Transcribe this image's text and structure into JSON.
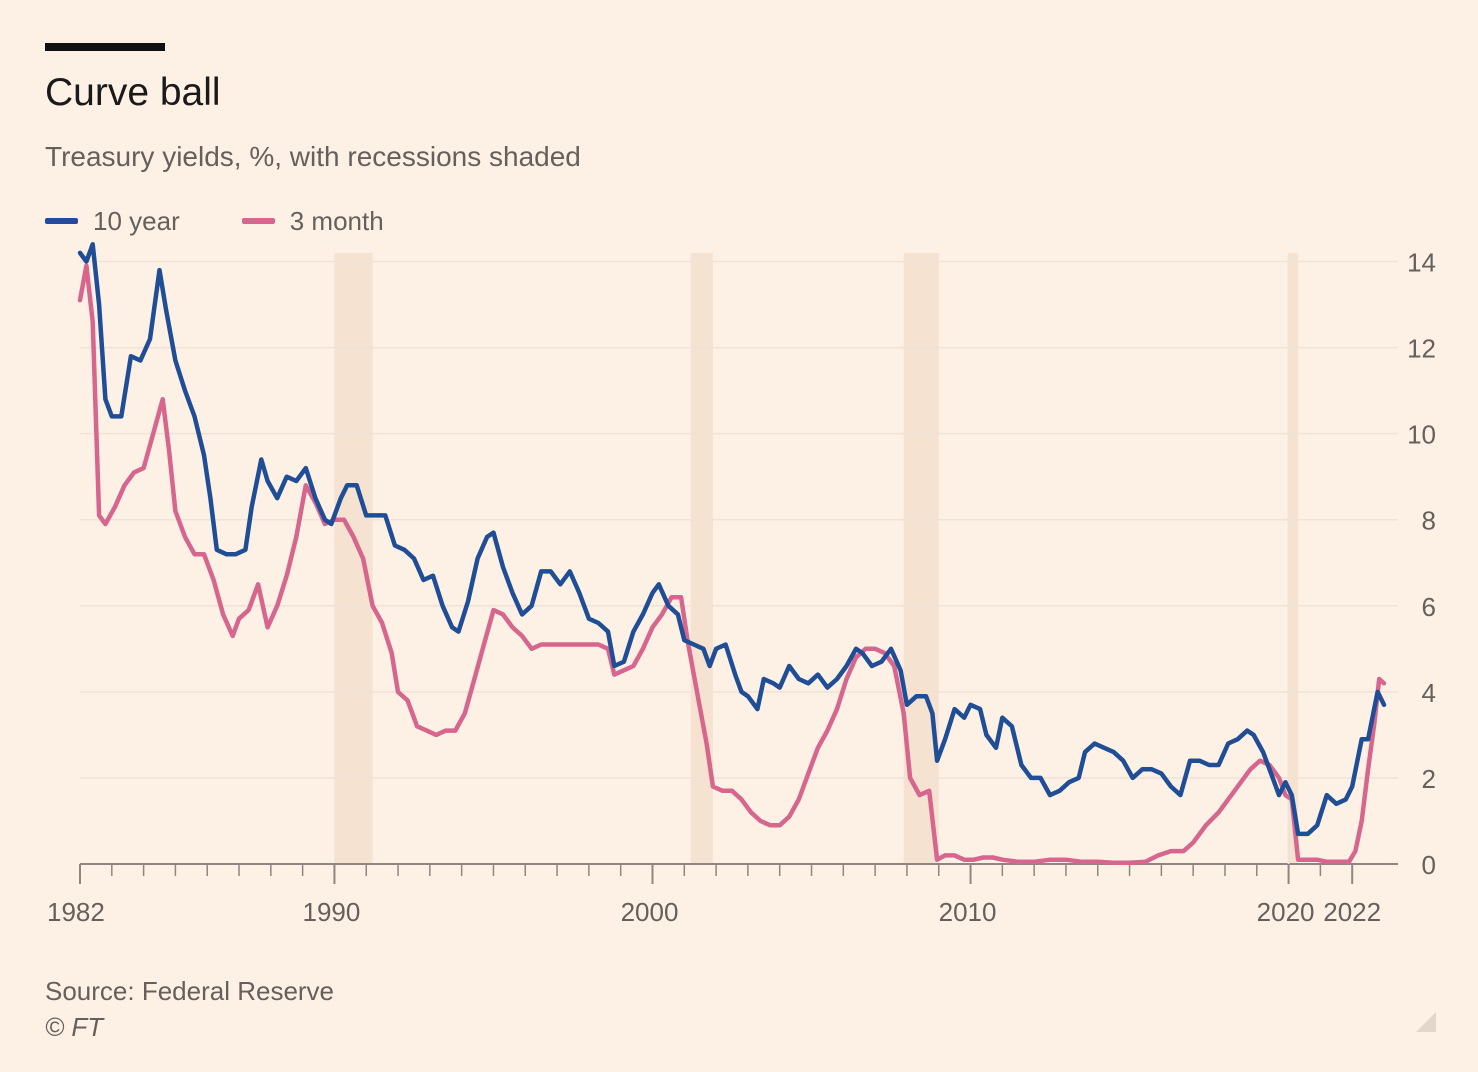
{
  "title": "Curve ball",
  "subtitle": "Treasury yields, %, with recessions shaded",
  "source": "Source: Federal Reserve",
  "credit": "© FT",
  "icons": {
    "resize_handle": "resize-corner-icon"
  },
  "colors": {
    "background": "#fdf1e6",
    "recession_shade": "#f5e2d0",
    "ten_year": "#1f4e96",
    "three_month": "#d6668d",
    "axis": "#8d8682",
    "grid": "#efe2d6",
    "tick_text": "#66605c"
  },
  "chart_data": {
    "type": "line",
    "title": "Curve ball",
    "subtitle": "Treasury yields, %, with recessions shaded",
    "xlabel": "",
    "ylabel": "",
    "xlim": [
      1982,
      2022.1
    ],
    "ylim": [
      0,
      14.5
    ],
    "x_ticks": [
      1982,
      1990,
      2000,
      2010,
      2020,
      2022
    ],
    "y_ticks": [
      0,
      2,
      4,
      6,
      8,
      10,
      12,
      14
    ],
    "y_axis_side": "right",
    "grid": "horizontal",
    "legend_position": "top-left",
    "recessions": [
      [
        1990.0,
        1991.2
      ],
      [
        2001.2,
        2001.9
      ],
      [
        2007.9,
        2009.0
      ],
      [
        2020.0,
        2020.3
      ]
    ],
    "series": [
      {
        "name": "10 year",
        "color": "#1f4e96",
        "points": [
          [
            1982.0,
            14.2
          ],
          [
            1982.2,
            14.0
          ],
          [
            1982.4,
            14.4
          ],
          [
            1982.6,
            13.0
          ],
          [
            1982.8,
            10.8
          ],
          [
            1983.0,
            10.4
          ],
          [
            1983.3,
            10.4
          ],
          [
            1983.6,
            11.8
          ],
          [
            1983.9,
            11.7
          ],
          [
            1984.2,
            12.2
          ],
          [
            1984.5,
            13.8
          ],
          [
            1984.7,
            12.9
          ],
          [
            1985.0,
            11.7
          ],
          [
            1985.3,
            11.0
          ],
          [
            1985.6,
            10.4
          ],
          [
            1985.9,
            9.5
          ],
          [
            1986.1,
            8.5
          ],
          [
            1986.3,
            7.3
          ],
          [
            1986.6,
            7.2
          ],
          [
            1986.9,
            7.2
          ],
          [
            1987.2,
            7.3
          ],
          [
            1987.4,
            8.3
          ],
          [
            1987.7,
            9.4
          ],
          [
            1987.9,
            8.9
          ],
          [
            1988.2,
            8.5
          ],
          [
            1988.5,
            9.0
          ],
          [
            1988.8,
            8.9
          ],
          [
            1989.1,
            9.2
          ],
          [
            1989.4,
            8.5
          ],
          [
            1989.7,
            8.0
          ],
          [
            1989.9,
            7.9
          ],
          [
            1990.2,
            8.5
          ],
          [
            1990.4,
            8.8
          ],
          [
            1990.7,
            8.8
          ],
          [
            1991.0,
            8.1
          ],
          [
            1991.3,
            8.1
          ],
          [
            1991.6,
            8.1
          ],
          [
            1991.9,
            7.4
          ],
          [
            1992.2,
            7.3
          ],
          [
            1992.5,
            7.1
          ],
          [
            1992.8,
            6.6
          ],
          [
            1993.1,
            6.7
          ],
          [
            1993.4,
            6.0
          ],
          [
            1993.7,
            5.5
          ],
          [
            1993.9,
            5.4
          ],
          [
            1994.2,
            6.1
          ],
          [
            1994.5,
            7.1
          ],
          [
            1994.8,
            7.6
          ],
          [
            1995.0,
            7.7
          ],
          [
            1995.3,
            6.9
          ],
          [
            1995.6,
            6.3
          ],
          [
            1995.9,
            5.8
          ],
          [
            1996.2,
            6.0
          ],
          [
            1996.5,
            6.8
          ],
          [
            1996.8,
            6.8
          ],
          [
            1997.1,
            6.5
          ],
          [
            1997.4,
            6.8
          ],
          [
            1997.7,
            6.3
          ],
          [
            1998.0,
            5.7
          ],
          [
            1998.3,
            5.6
          ],
          [
            1998.6,
            5.4
          ],
          [
            1998.8,
            4.6
          ],
          [
            1999.1,
            4.7
          ],
          [
            1999.4,
            5.4
          ],
          [
            1999.7,
            5.8
          ],
          [
            2000.0,
            6.3
          ],
          [
            2000.2,
            6.5
          ],
          [
            2000.5,
            6.0
          ],
          [
            2000.8,
            5.8
          ],
          [
            2001.0,
            5.2
          ],
          [
            2001.3,
            5.1
          ],
          [
            2001.6,
            5.0
          ],
          [
            2001.8,
            4.6
          ],
          [
            2002.0,
            5.0
          ],
          [
            2002.3,
            5.1
          ],
          [
            2002.6,
            4.4
          ],
          [
            2002.8,
            4.0
          ],
          [
            2003.0,
            3.9
          ],
          [
            2003.3,
            3.6
          ],
          [
            2003.5,
            4.3
          ],
          [
            2003.8,
            4.2
          ],
          [
            2004.0,
            4.1
          ],
          [
            2004.3,
            4.6
          ],
          [
            2004.6,
            4.3
          ],
          [
            2004.9,
            4.2
          ],
          [
            2005.2,
            4.4
          ],
          [
            2005.5,
            4.1
          ],
          [
            2005.8,
            4.3
          ],
          [
            2006.1,
            4.6
          ],
          [
            2006.4,
            5.0
          ],
          [
            2006.6,
            4.9
          ],
          [
            2006.9,
            4.6
          ],
          [
            2007.2,
            4.7
          ],
          [
            2007.5,
            5.0
          ],
          [
            2007.8,
            4.5
          ],
          [
            2008.0,
            3.7
          ],
          [
            2008.3,
            3.9
          ],
          [
            2008.6,
            3.9
          ],
          [
            2008.8,
            3.5
          ],
          [
            2008.95,
            2.4
          ],
          [
            2009.2,
            2.9
          ],
          [
            2009.5,
            3.6
          ],
          [
            2009.8,
            3.4
          ],
          [
            2010.0,
            3.7
          ],
          [
            2010.3,
            3.6
          ],
          [
            2010.5,
            3.0
          ],
          [
            2010.8,
            2.7
          ],
          [
            2011.0,
            3.4
          ],
          [
            2011.3,
            3.2
          ],
          [
            2011.6,
            2.3
          ],
          [
            2011.9,
            2.0
          ],
          [
            2012.2,
            2.0
          ],
          [
            2012.5,
            1.6
          ],
          [
            2012.8,
            1.7
          ],
          [
            2013.1,
            1.9
          ],
          [
            2013.4,
            2.0
          ],
          [
            2013.6,
            2.6
          ],
          [
            2013.9,
            2.8
          ],
          [
            2014.2,
            2.7
          ],
          [
            2014.5,
            2.6
          ],
          [
            2014.8,
            2.4
          ],
          [
            2015.1,
            2.0
          ],
          [
            2015.4,
            2.2
          ],
          [
            2015.7,
            2.2
          ],
          [
            2016.0,
            2.1
          ],
          [
            2016.3,
            1.8
          ],
          [
            2016.6,
            1.6
          ],
          [
            2016.9,
            2.4
          ],
          [
            2017.2,
            2.4
          ],
          [
            2017.5,
            2.3
          ],
          [
            2017.8,
            2.3
          ],
          [
            2018.1,
            2.8
          ],
          [
            2018.4,
            2.9
          ],
          [
            2018.7,
            3.1
          ],
          [
            2018.9,
            3.0
          ],
          [
            2019.2,
            2.6
          ],
          [
            2019.5,
            2.0
          ],
          [
            2019.7,
            1.6
          ],
          [
            2019.9,
            1.9
          ],
          [
            2020.1,
            1.6
          ],
          [
            2020.3,
            0.7
          ],
          [
            2020.6,
            0.7
          ],
          [
            2020.9,
            0.9
          ],
          [
            2021.2,
            1.6
          ],
          [
            2021.5,
            1.4
          ],
          [
            2021.8,
            1.5
          ],
          [
            2022.0,
            1.8
          ],
          [
            2022.3,
            2.9
          ],
          [
            2022.5,
            2.9
          ],
          [
            2022.8,
            4.0
          ],
          [
            2023.0,
            3.7
          ]
        ]
      },
      {
        "name": "3 month",
        "color": "#d6668d",
        "points": [
          [
            1982.0,
            13.1
          ],
          [
            1982.2,
            13.9
          ],
          [
            1982.4,
            12.6
          ],
          [
            1982.6,
            8.1
          ],
          [
            1982.8,
            7.9
          ],
          [
            1983.1,
            8.3
          ],
          [
            1983.4,
            8.8
          ],
          [
            1983.7,
            9.1
          ],
          [
            1984.0,
            9.2
          ],
          [
            1984.3,
            10.0
          ],
          [
            1984.6,
            10.8
          ],
          [
            1984.8,
            9.6
          ],
          [
            1985.0,
            8.2
          ],
          [
            1985.3,
            7.6
          ],
          [
            1985.6,
            7.2
          ],
          [
            1985.9,
            7.2
          ],
          [
            1986.2,
            6.6
          ],
          [
            1986.5,
            5.8
          ],
          [
            1986.8,
            5.3
          ],
          [
            1987.0,
            5.7
          ],
          [
            1987.3,
            5.9
          ],
          [
            1987.6,
            6.5
          ],
          [
            1987.9,
            5.5
          ],
          [
            1988.2,
            6.0
          ],
          [
            1988.5,
            6.7
          ],
          [
            1988.8,
            7.6
          ],
          [
            1989.1,
            8.8
          ],
          [
            1989.4,
            8.4
          ],
          [
            1989.7,
            7.9
          ],
          [
            1990.0,
            8.0
          ],
          [
            1990.3,
            8.0
          ],
          [
            1990.6,
            7.6
          ],
          [
            1990.9,
            7.1
          ],
          [
            1991.2,
            6.0
          ],
          [
            1991.5,
            5.6
          ],
          [
            1991.8,
            4.9
          ],
          [
            1992.0,
            4.0
          ],
          [
            1992.3,
            3.8
          ],
          [
            1992.6,
            3.2
          ],
          [
            1992.9,
            3.1
          ],
          [
            1993.2,
            3.0
          ],
          [
            1993.5,
            3.1
          ],
          [
            1993.8,
            3.1
          ],
          [
            1994.1,
            3.5
          ],
          [
            1994.4,
            4.3
          ],
          [
            1994.7,
            5.1
          ],
          [
            1995.0,
            5.9
          ],
          [
            1995.3,
            5.8
          ],
          [
            1995.6,
            5.5
          ],
          [
            1995.9,
            5.3
          ],
          [
            1996.2,
            5.0
          ],
          [
            1996.5,
            5.1
          ],
          [
            1996.8,
            5.1
          ],
          [
            1997.1,
            5.1
          ],
          [
            1997.4,
            5.1
          ],
          [
            1997.7,
            5.1
          ],
          [
            1998.0,
            5.1
          ],
          [
            1998.3,
            5.1
          ],
          [
            1998.6,
            5.0
          ],
          [
            1998.8,
            4.4
          ],
          [
            1999.1,
            4.5
          ],
          [
            1999.4,
            4.6
          ],
          [
            1999.7,
            5.0
          ],
          [
            2000.0,
            5.5
          ],
          [
            2000.3,
            5.8
          ],
          [
            2000.6,
            6.2
          ],
          [
            2000.9,
            6.2
          ],
          [
            2001.1,
            5.2
          ],
          [
            2001.4,
            4.0
          ],
          [
            2001.7,
            2.8
          ],
          [
            2001.9,
            1.8
          ],
          [
            2002.2,
            1.7
          ],
          [
            2002.5,
            1.7
          ],
          [
            2002.8,
            1.5
          ],
          [
            2003.1,
            1.2
          ],
          [
            2003.4,
            1.0
          ],
          [
            2003.7,
            0.9
          ],
          [
            2004.0,
            0.9
          ],
          [
            2004.3,
            1.1
          ],
          [
            2004.6,
            1.5
          ],
          [
            2004.9,
            2.1
          ],
          [
            2005.2,
            2.7
          ],
          [
            2005.5,
            3.1
          ],
          [
            2005.8,
            3.6
          ],
          [
            2006.1,
            4.3
          ],
          [
            2006.4,
            4.8
          ],
          [
            2006.7,
            5.0
          ],
          [
            2007.0,
            5.0
          ],
          [
            2007.3,
            4.9
          ],
          [
            2007.6,
            4.6
          ],
          [
            2007.9,
            3.5
          ],
          [
            2008.1,
            2.0
          ],
          [
            2008.4,
            1.6
          ],
          [
            2008.7,
            1.7
          ],
          [
            2008.95,
            0.1
          ],
          [
            2009.2,
            0.2
          ],
          [
            2009.5,
            0.2
          ],
          [
            2009.8,
            0.1
          ],
          [
            2010.1,
            0.1
          ],
          [
            2010.4,
            0.15
          ],
          [
            2010.7,
            0.15
          ],
          [
            2011.0,
            0.1
          ],
          [
            2011.5,
            0.05
          ],
          [
            2012.0,
            0.05
          ],
          [
            2012.5,
            0.1
          ],
          [
            2013.0,
            0.1
          ],
          [
            2013.5,
            0.05
          ],
          [
            2014.0,
            0.05
          ],
          [
            2014.5,
            0.03
          ],
          [
            2015.0,
            0.03
          ],
          [
            2015.5,
            0.05
          ],
          [
            2015.9,
            0.2
          ],
          [
            2016.3,
            0.3
          ],
          [
            2016.7,
            0.3
          ],
          [
            2017.0,
            0.5
          ],
          [
            2017.4,
            0.9
          ],
          [
            2017.8,
            1.2
          ],
          [
            2018.1,
            1.5
          ],
          [
            2018.5,
            1.9
          ],
          [
            2018.8,
            2.2
          ],
          [
            2019.1,
            2.4
          ],
          [
            2019.4,
            2.3
          ],
          [
            2019.7,
            2.0
          ],
          [
            2019.9,
            1.6
          ],
          [
            2020.1,
            1.5
          ],
          [
            2020.3,
            0.1
          ],
          [
            2020.6,
            0.1
          ],
          [
            2020.9,
            0.1
          ],
          [
            2021.2,
            0.05
          ],
          [
            2021.6,
            0.05
          ],
          [
            2021.9,
            0.05
          ],
          [
            2022.1,
            0.3
          ],
          [
            2022.3,
            1.0
          ],
          [
            2022.5,
            2.2
          ],
          [
            2022.7,
            3.3
          ],
          [
            2022.85,
            4.3
          ],
          [
            2023.0,
            4.2
          ]
        ]
      }
    ]
  }
}
